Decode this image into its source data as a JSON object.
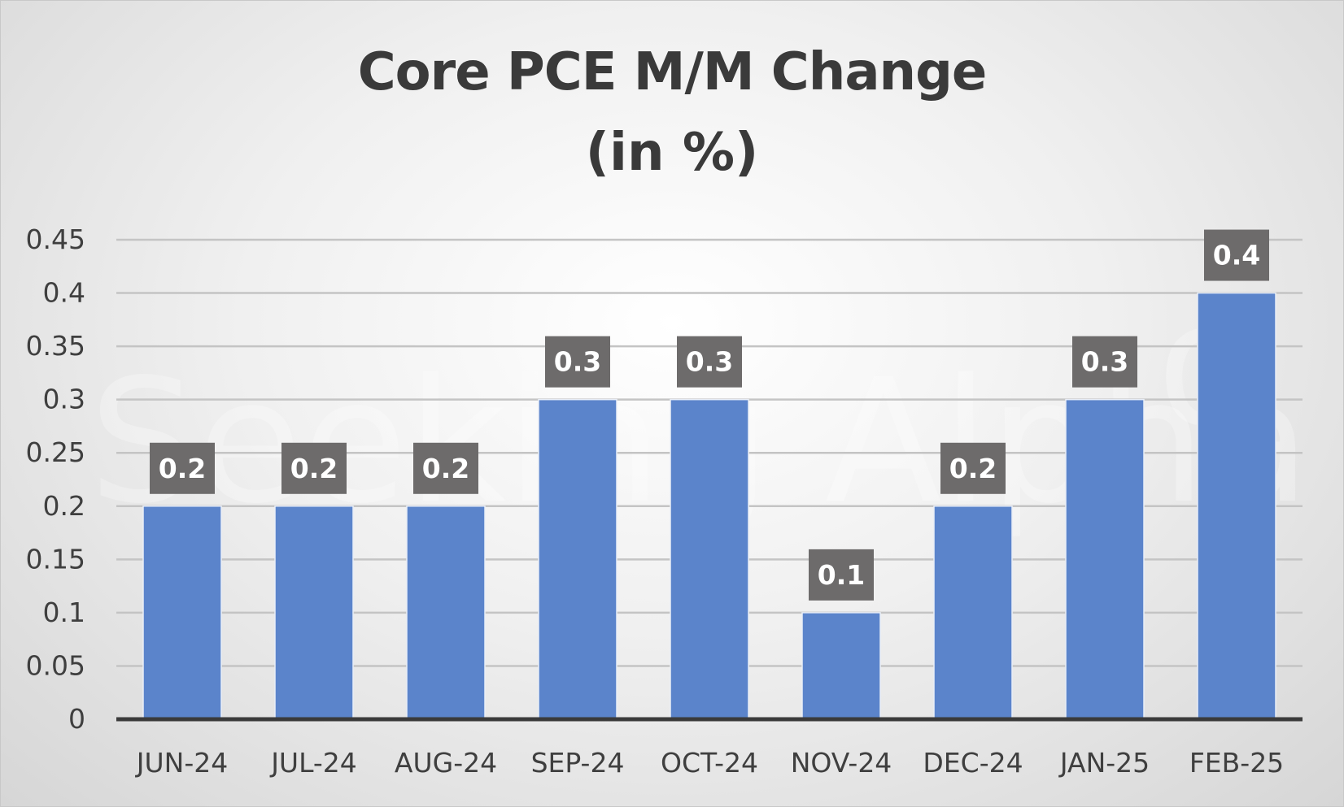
{
  "chart_data": {
    "type": "bar",
    "title": "Core PCE M/M Change",
    "subtitle": "(in %)",
    "categories": [
      "JUN-24",
      "JUL-24",
      "AUG-24",
      "SEP-24",
      "OCT-24",
      "NOV-24",
      "DEC-24",
      "JAN-25",
      "FEB-25"
    ],
    "values": [
      0.2,
      0.2,
      0.2,
      0.3,
      0.3,
      0.1,
      0.2,
      0.3,
      0.4
    ],
    "data_labels": [
      "0.2",
      "0.2",
      "0.2",
      "0.3",
      "0.3",
      "0.1",
      "0.2",
      "0.3",
      "0.4"
    ],
    "xlabel": "",
    "ylabel": "",
    "ylim": [
      0,
      0.45
    ],
    "y_ticks": [
      "0",
      "0.05",
      "0.1",
      "0.15",
      "0.2",
      "0.25",
      "0.3",
      "0.35",
      "0.4",
      "0.45"
    ],
    "grid": true,
    "legend": "none",
    "colors": {
      "bar": "#5b84cb",
      "data_label_bg": "#6d6b6b",
      "gridline": "#c4c4c4",
      "axis": "#3a3a3a",
      "text": "#3f3f3f"
    }
  },
  "watermark": {
    "text": "Seeking Alpha",
    "symbol": "α"
  }
}
